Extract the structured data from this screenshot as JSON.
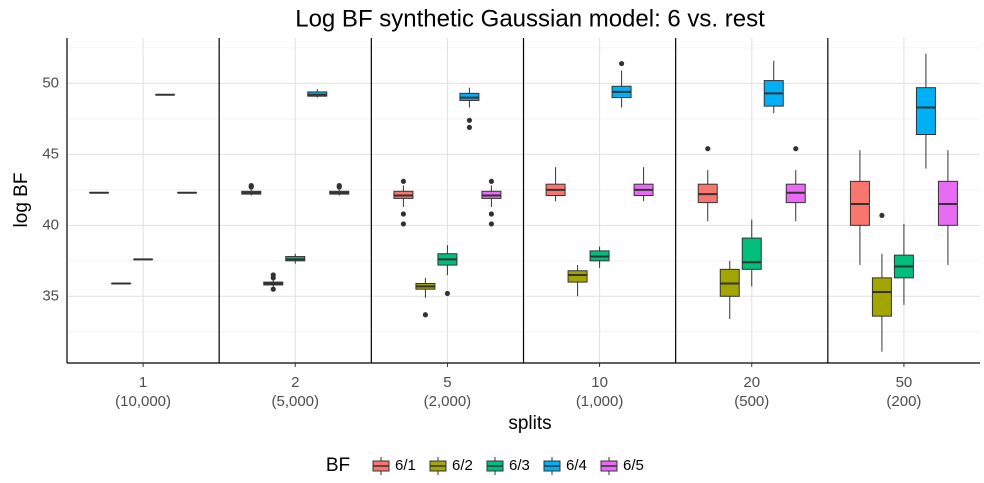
{
  "chart_data": {
    "type": "box",
    "title": "Log BF synthetic Gaussian model: 6 vs. rest",
    "x_label": "splits",
    "y_label": "log BF",
    "legend_title": "BF",
    "legend": "bottom",
    "grid": true,
    "categories": [
      "1",
      "2",
      "5",
      "10",
      "20",
      "50"
    ],
    "category_sublabels": [
      "(10,000)",
      "(5,000)",
      "(2,000)",
      "(1,000)",
      "(500)",
      "(200)"
    ],
    "ylim": [
      30.3,
      53.2
    ],
    "yticks": [
      35,
      40,
      45,
      50
    ],
    "yminor": [
      32.5,
      37.5,
      42.5,
      47.5,
      52.5
    ],
    "series": [
      {
        "name": "6/1",
        "color": "#F8766D",
        "min": [
          42.3,
          42.1,
          41.3,
          41.7,
          40.3,
          37.2
        ],
        "q1": [
          42.3,
          42.2,
          41.9,
          42.1,
          41.6,
          40.0
        ],
        "median": [
          42.3,
          42.3,
          42.1,
          42.5,
          42.2,
          41.5
        ],
        "q3": [
          42.3,
          42.4,
          42.4,
          42.9,
          42.9,
          43.1
        ],
        "max": [
          42.3,
          42.5,
          42.8,
          44.1,
          43.9,
          45.3
        ],
        "outliers": [
          [],
          [
            42.8,
            42.7
          ],
          [
            43.1,
            40.8,
            40.1
          ],
          [],
          [
            45.4
          ],
          []
        ]
      },
      {
        "name": "6/2",
        "color": "#A3A500",
        "min": [
          35.9,
          35.6,
          34.9,
          35.0,
          33.4,
          31.1
        ],
        "q1": [
          35.9,
          35.8,
          35.5,
          36.0,
          35.0,
          33.6
        ],
        "median": [
          35.9,
          35.9,
          35.7,
          36.5,
          35.9,
          35.3
        ],
        "q3": [
          35.9,
          36.0,
          35.9,
          36.8,
          36.9,
          36.3
        ],
        "max": [
          35.9,
          36.2,
          36.3,
          37.2,
          37.5,
          38.0
        ],
        "outliers": [
          [],
          [
            36.3,
            36.5,
            35.5
          ],
          [
            33.7
          ],
          [],
          [],
          [
            40.7
          ]
        ]
      },
      {
        "name": "6/3",
        "color": "#00BF7D",
        "min": [
          37.6,
          37.3,
          36.5,
          37.0,
          35.7,
          34.4
        ],
        "q1": [
          37.6,
          37.5,
          37.2,
          37.5,
          36.9,
          36.3
        ],
        "median": [
          37.6,
          37.6,
          37.6,
          37.8,
          37.4,
          37.1
        ],
        "q3": [
          37.6,
          37.8,
          38.0,
          38.2,
          39.1,
          37.9
        ],
        "max": [
          37.6,
          38.0,
          38.6,
          38.5,
          40.4,
          40.1
        ],
        "outliers": [
          [],
          [],
          [
            35.2
          ],
          [],
          [],
          []
        ]
      },
      {
        "name": "6/4",
        "color": "#00B0F6",
        "min": [
          49.2,
          49.0,
          48.3,
          48.3,
          47.9,
          44.0
        ],
        "q1": [
          49.2,
          49.1,
          48.8,
          49.0,
          48.4,
          46.4
        ],
        "median": [
          49.2,
          49.2,
          49.0,
          49.4,
          49.3,
          48.3
        ],
        "q3": [
          49.2,
          49.4,
          49.3,
          49.8,
          50.2,
          49.7
        ],
        "max": [
          49.2,
          49.6,
          49.7,
          50.9,
          51.6,
          52.1
        ],
        "outliers": [
          [],
          [],
          [
            47.4,
            46.9
          ],
          [
            51.4
          ],
          [],
          []
        ]
      },
      {
        "name": "6/5",
        "color": "#E76BF3",
        "min": [
          42.3,
          42.1,
          41.3,
          41.7,
          40.3,
          37.2
        ],
        "q1": [
          42.3,
          42.2,
          41.9,
          42.1,
          41.6,
          40.0
        ],
        "median": [
          42.3,
          42.3,
          42.1,
          42.5,
          42.3,
          41.5
        ],
        "q3": [
          42.3,
          42.4,
          42.4,
          42.9,
          42.9,
          43.1
        ],
        "max": [
          42.3,
          42.5,
          42.8,
          44.1,
          43.9,
          45.3
        ],
        "outliers": [
          [],
          [
            42.8,
            42.7
          ],
          [
            43.1,
            40.8,
            40.1
          ],
          [],
          [
            45.4
          ],
          []
        ]
      }
    ]
  }
}
